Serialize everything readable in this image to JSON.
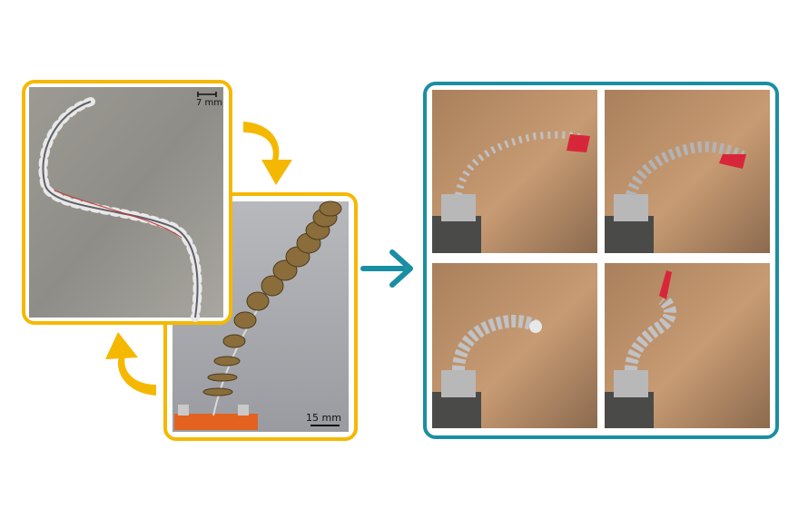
{
  "panels": {
    "photo_a": {
      "scale_label": "7 mm"
    },
    "photo_b": {
      "scale_label": "15 mm"
    }
  },
  "colors": {
    "yellow": "#F5B800",
    "teal": "#1A8EA3"
  }
}
